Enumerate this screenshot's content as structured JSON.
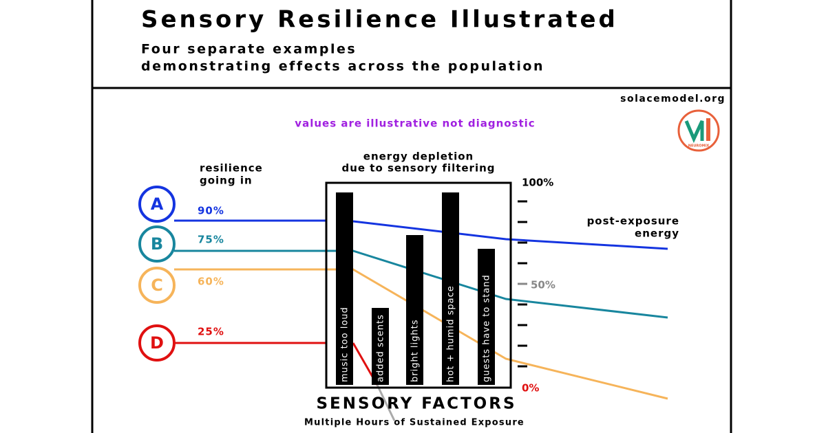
{
  "header": {
    "title": "Sensory Resilience Illustrated",
    "subtitle": [
      "Four separate examples",
      "demonstrating effects across the population"
    ]
  },
  "source": "solacemodel.org",
  "note": "values are illustrative not diagnostic",
  "logo": "NEUROMIX",
  "resilience_label": [
    "resilience",
    "going in"
  ],
  "depletion_label": [
    "energy depletion",
    "due to sensory filtering"
  ],
  "post_label": [
    "post-exposure",
    "energy"
  ],
  "scale": {
    "top": "100%",
    "middle": "50%",
    "bottom": "0%"
  },
  "groups": [
    {
      "letter": "A",
      "percent": "90%"
    },
    {
      "letter": "B",
      "percent": "75%"
    },
    {
      "letter": "C",
      "percent": "60%"
    },
    {
      "letter": "D",
      "percent": "25%"
    }
  ],
  "factors": [
    "music too loud",
    "added scents",
    "bright lights",
    "hot + humid space",
    "guests have to stand"
  ],
  "footer": {
    "title": "SENSORY FACTORS",
    "subtitle": "Multiple Hours of Sustained Exposure"
  }
}
